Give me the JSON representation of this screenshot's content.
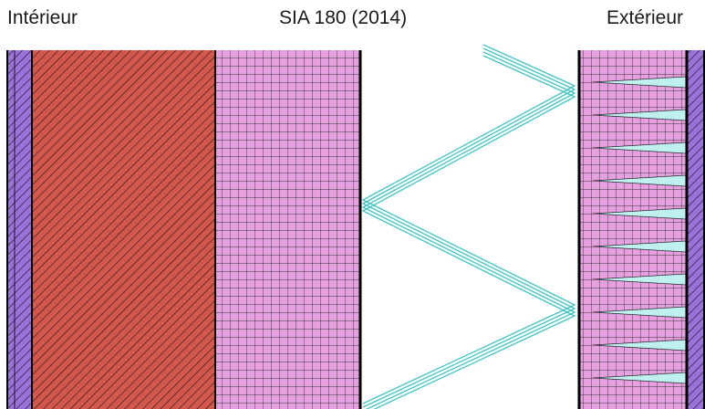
{
  "labels": {
    "interior": "Intérieur",
    "title": "SIA 180 (2014)",
    "exterior": "Extérieur"
  },
  "layers": [
    {
      "name": "plaster-inner",
      "pattern": "diagonal-hatch",
      "fill": "#9a73d9"
    },
    {
      "name": "brick-masonry",
      "pattern": "diagonal-hatch",
      "fill": "#d4574c"
    },
    {
      "name": "insulation-inner",
      "pattern": "grid",
      "fill": "#e6a0e0"
    },
    {
      "name": "air-cavity-insulation",
      "pattern": "zigzag",
      "fill": "#ffffff"
    },
    {
      "name": "insulation-outer",
      "pattern": "grid",
      "fill": "#e6a0e0"
    },
    {
      "name": "cladding-outer",
      "pattern": "diagonal-hatch",
      "fill": "#9a73d9"
    }
  ],
  "colors": {
    "grid_line": "#333333",
    "hatch_line": "#2a1a1a",
    "zigzag": "#40c4c4",
    "wedge": "#bff0f0",
    "border": "#000000"
  }
}
